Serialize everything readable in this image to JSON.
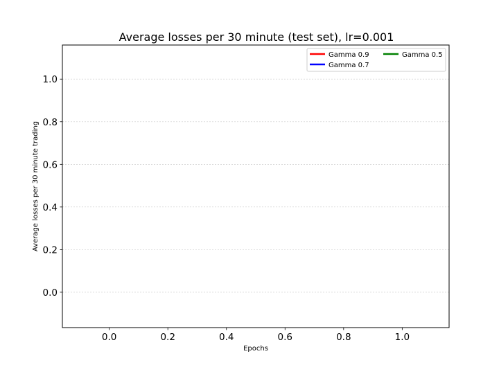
{
  "chart_data": {
    "type": "line",
    "title": "Average losses per 30 minute (test set), lr=0.001",
    "xlabel": "Epochs",
    "ylabel": "Average losses per 30 minute trading",
    "xlim": [
      -0.16,
      1.16
    ],
    "ylim": [
      -0.166,
      1.16
    ],
    "x_ticks": [
      0.0,
      0.2,
      0.4,
      0.6,
      0.8,
      1.0
    ],
    "x_tick_labels": [
      "0.0",
      "0.2",
      "0.4",
      "0.6",
      "0.8",
      "1.0"
    ],
    "y_ticks": [
      0.0,
      0.2,
      0.4,
      0.6,
      0.8,
      1.0
    ],
    "y_tick_labels": [
      "0.0",
      "0.2",
      "0.4",
      "0.6",
      "0.8",
      "1.0"
    ],
    "grid": "horizontal",
    "legend_position": "top-right",
    "legend_columns": 2,
    "series": [
      {
        "name": "Gamma 0.9",
        "color": "#ff0000",
        "x": [],
        "y": []
      },
      {
        "name": "Gamma 0.7",
        "color": "#0000ff",
        "x": [],
        "y": []
      },
      {
        "name": "Gamma 0.5",
        "color": "#008000",
        "x": [],
        "y": []
      }
    ]
  }
}
